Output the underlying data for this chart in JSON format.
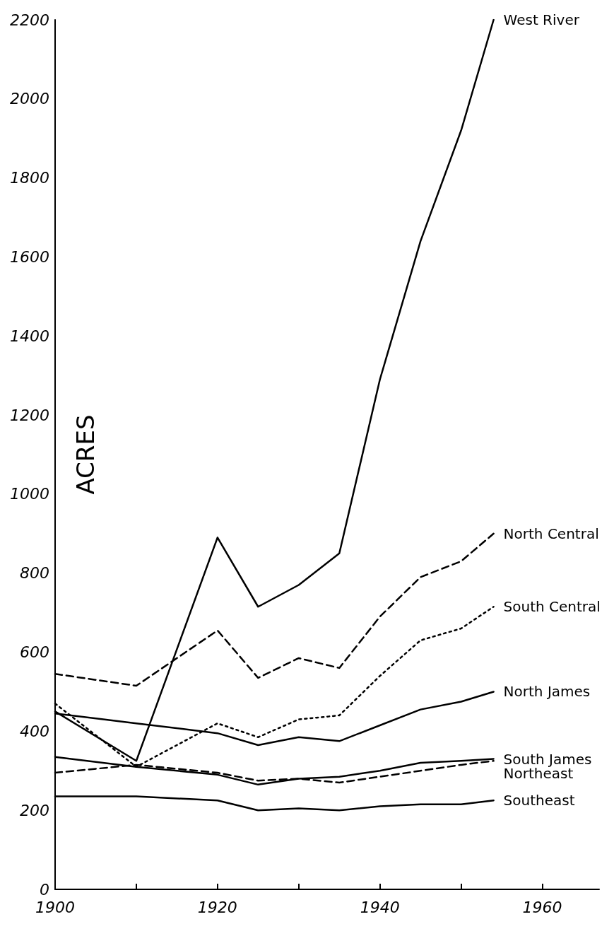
{
  "chart_data": {
    "type": "line",
    "ylabel": "ACRES",
    "x": [
      1900,
      1910,
      1920,
      1925,
      1930,
      1935,
      1940,
      1945,
      1950,
      1954
    ],
    "series": [
      {
        "name": "West River",
        "color": "#000000",
        "line_style": "solid",
        "values": [
          450,
          325,
          890,
          715,
          770,
          850,
          1290,
          1640,
          1920,
          2200
        ]
      },
      {
        "name": "North Central",
        "color": "#000000",
        "line_style": "dashed",
        "values": [
          545,
          515,
          655,
          535,
          585,
          560,
          690,
          790,
          830,
          900
        ]
      },
      {
        "name": "South Central",
        "color": "#000000",
        "line_style": "dotted",
        "values": [
          470,
          310,
          420,
          385,
          430,
          440,
          540,
          630,
          660,
          715
        ]
      },
      {
        "name": "North James",
        "color": "#000000",
        "line_style": "solid",
        "values": [
          445,
          420,
          395,
          365,
          385,
          375,
          415,
          455,
          475,
          500
        ]
      },
      {
        "name": "South James",
        "color": "#000000",
        "line_style": "solid",
        "values": [
          335,
          310,
          290,
          265,
          280,
          285,
          300,
          320,
          325,
          330
        ]
      },
      {
        "name": "Northeast",
        "color": "#000000",
        "line_style": "dashed",
        "values": [
          295,
          315,
          295,
          275,
          280,
          270,
          285,
          300,
          315,
          325
        ]
      },
      {
        "name": "Southeast",
        "color": "#000000",
        "line_style": "solid",
        "values": [
          235,
          235,
          225,
          200,
          205,
          200,
          210,
          215,
          215,
          225
        ]
      }
    ],
    "xlim": [
      1900,
      1967
    ],
    "xticks": [
      1900,
      {
        "value": 1910,
        "label": null
      },
      1920,
      {
        "value": 1930,
        "label": null
      },
      1940,
      {
        "value": 1950,
        "label": null
      },
      1960
    ],
    "ylim": [
      0,
      2200
    ],
    "yticks": [
      0,
      200,
      400,
      600,
      800,
      1000,
      1200,
      1400,
      1600,
      1800,
      2000,
      2200
    ],
    "grid": false,
    "legend": false,
    "marker": "none"
  }
}
